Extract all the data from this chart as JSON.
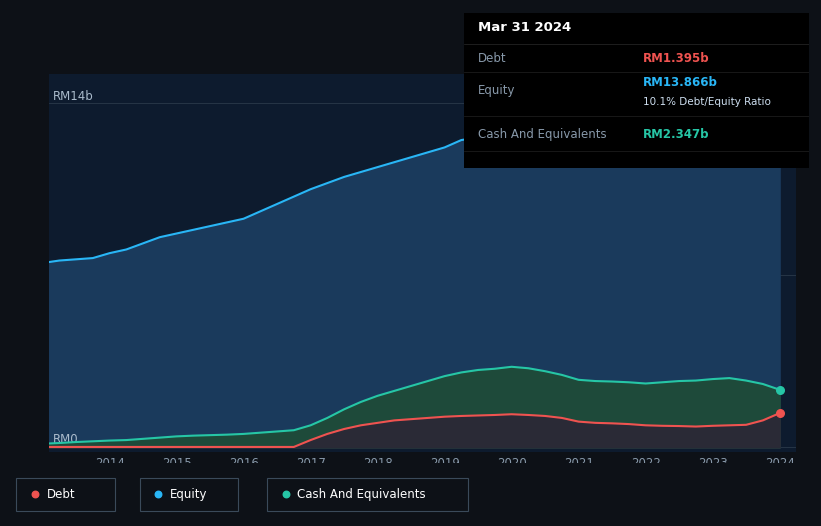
{
  "background_color": "#0d1117",
  "chart_bg_color": "#0d1b2e",
  "title": "Mar 31 2024",
  "tooltip_data": {
    "Debt": "RM1.395b",
    "Equity": "RM13.866b",
    "ratio": "10.1% Debt/Equity Ratio",
    "Cash And Equivalents": "RM2.347b"
  },
  "ylabel_top": "RM14b",
  "ylabel_bottom": "RM0",
  "equity_color": "#29b6f6",
  "equity_fill": "#1a3a5c",
  "debt_color": "#ef5350",
  "cash_color": "#26c6a6",
  "cash_fill": "#1e4a3a",
  "debt_fill": "#2a2a36",
  "years": [
    2013.0,
    2013.25,
    2013.5,
    2013.75,
    2014.0,
    2014.25,
    2014.5,
    2014.75,
    2015.0,
    2015.25,
    2015.5,
    2015.75,
    2016.0,
    2016.25,
    2016.5,
    2016.75,
    2017.0,
    2017.25,
    2017.5,
    2017.75,
    2018.0,
    2018.25,
    2018.5,
    2018.75,
    2019.0,
    2019.25,
    2019.5,
    2019.75,
    2020.0,
    2020.25,
    2020.5,
    2020.75,
    2021.0,
    2021.25,
    2021.5,
    2021.75,
    2022.0,
    2022.25,
    2022.5,
    2022.75,
    2023.0,
    2023.25,
    2023.5,
    2023.75,
    2024.0
  ],
  "equity": [
    7.5,
    7.6,
    7.65,
    7.7,
    7.9,
    8.05,
    8.3,
    8.55,
    8.7,
    8.85,
    9.0,
    9.15,
    9.3,
    9.6,
    9.9,
    10.2,
    10.5,
    10.75,
    11.0,
    11.2,
    11.4,
    11.6,
    11.8,
    12.0,
    12.2,
    12.5,
    12.6,
    12.75,
    12.85,
    12.7,
    12.5,
    12.3,
    12.2,
    12.3,
    12.5,
    12.65,
    12.75,
    12.85,
    12.95,
    13.05,
    13.1,
    13.2,
    13.35,
    13.55,
    13.866
  ],
  "debt": [
    0.02,
    0.02,
    0.02,
    0.02,
    0.02,
    0.02,
    0.02,
    0.02,
    0.02,
    0.02,
    0.02,
    0.02,
    0.02,
    0.02,
    0.02,
    0.02,
    0.3,
    0.55,
    0.75,
    0.9,
    1.0,
    1.1,
    1.15,
    1.2,
    1.25,
    1.28,
    1.3,
    1.32,
    1.35,
    1.32,
    1.28,
    1.2,
    1.05,
    1.0,
    0.98,
    0.95,
    0.9,
    0.88,
    0.87,
    0.85,
    0.88,
    0.9,
    0.92,
    1.1,
    1.395
  ],
  "cash": [
    0.15,
    0.18,
    0.22,
    0.25,
    0.28,
    0.3,
    0.35,
    0.4,
    0.45,
    0.48,
    0.5,
    0.52,
    0.55,
    0.6,
    0.65,
    0.7,
    0.9,
    1.2,
    1.55,
    1.85,
    2.1,
    2.3,
    2.5,
    2.7,
    2.9,
    3.05,
    3.15,
    3.2,
    3.28,
    3.22,
    3.1,
    2.95,
    2.75,
    2.7,
    2.68,
    2.65,
    2.6,
    2.65,
    2.7,
    2.72,
    2.78,
    2.82,
    2.72,
    2.58,
    2.347
  ]
}
